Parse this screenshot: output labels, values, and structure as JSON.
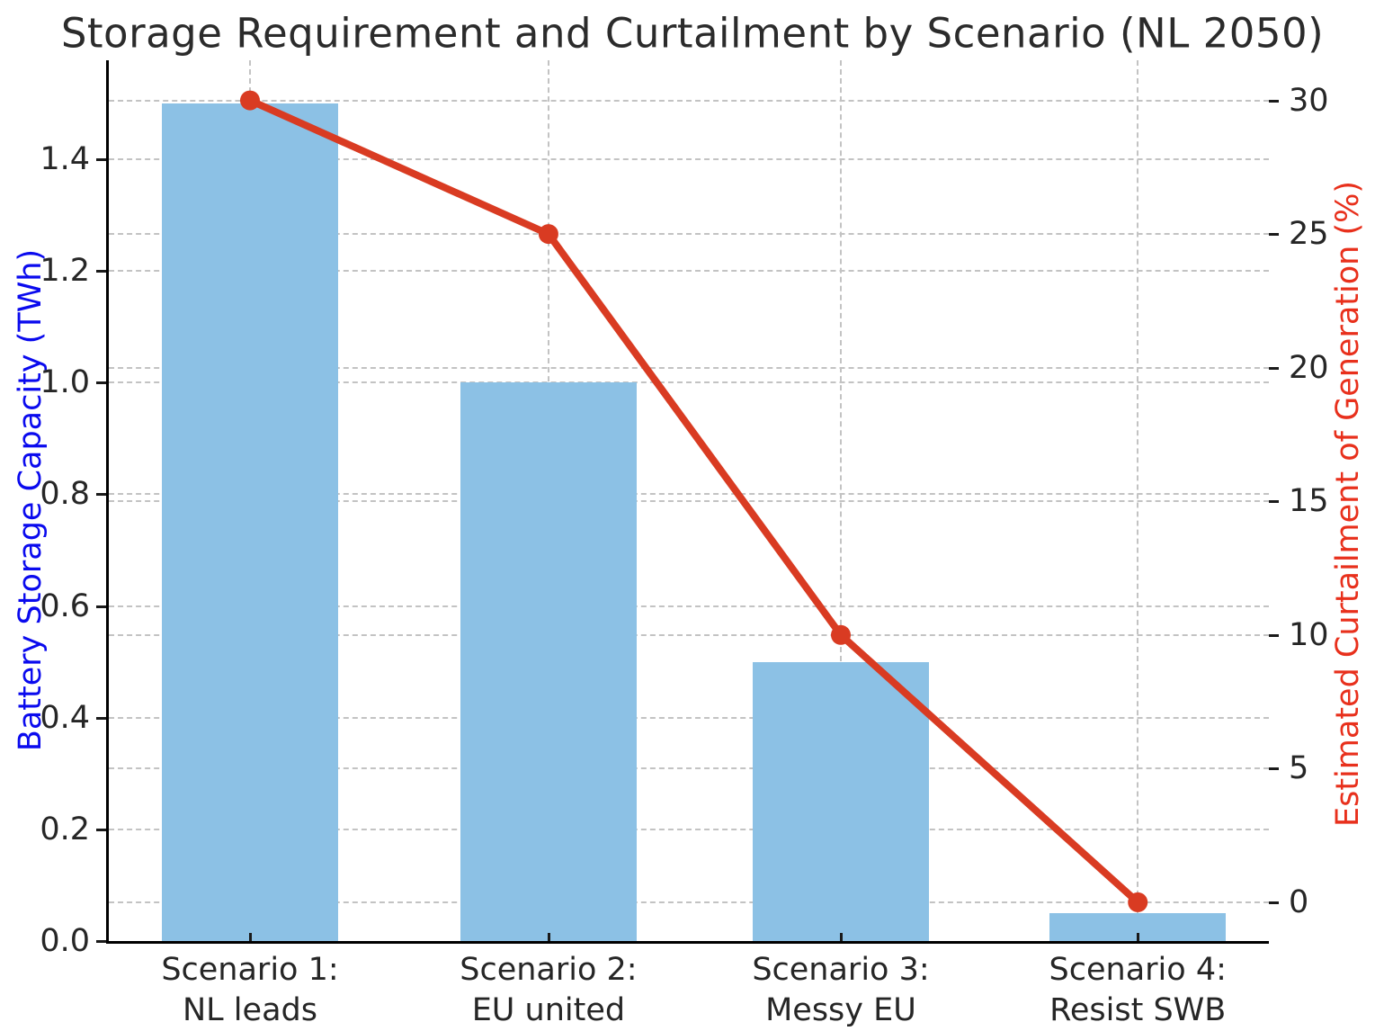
{
  "chart_data": {
    "type": "combo",
    "title": "Storage Requirement and Curtailment by Scenario (NL 2050)",
    "categories": [
      "Scenario 1:\nNL leads",
      "Scenario 2:\nEU united",
      "Scenario 3:\nMessy EU",
      "Scenario 4:\nResist SWB"
    ],
    "series": [
      {
        "name": "Battery Storage Capacity (TWh)",
        "type": "bar",
        "axis": "left",
        "color": "#8cc1e5",
        "values": [
          1.5,
          1.0,
          0.5,
          0.05
        ]
      },
      {
        "name": "Estimated Curtailment of Generation (%)",
        "type": "line",
        "axis": "right",
        "color": "#d93b22",
        "marker": "circle",
        "values": [
          30,
          25,
          10,
          0
        ]
      }
    ],
    "left_axis": {
      "label": "Battery Storage Capacity (TWh)",
      "label_color": "#0a0aee",
      "range": [
        0,
        1.577
      ],
      "ticks": [
        {
          "value": 0.0,
          "label": "0.0"
        },
        {
          "value": 0.2,
          "label": "0.2"
        },
        {
          "value": 0.4,
          "label": "0.4"
        },
        {
          "value": 0.6,
          "label": "0.6"
        },
        {
          "value": 0.8,
          "label": "0.8"
        },
        {
          "value": 1.0,
          "label": "1.0"
        },
        {
          "value": 1.2,
          "label": "1.2"
        },
        {
          "value": 1.4,
          "label": "1.4"
        }
      ]
    },
    "right_axis": {
      "label": "Estimated Curtailment of Generation (%)",
      "label_color": "#e8301c",
      "range": [
        -1.45,
        31.5
      ],
      "ticks": [
        {
          "value": 0,
          "label": "0"
        },
        {
          "value": 5,
          "label": "5"
        },
        {
          "value": 10,
          "label": "10"
        },
        {
          "value": 15,
          "label": "15"
        },
        {
          "value": 20,
          "label": "20"
        },
        {
          "value": 25,
          "label": "25"
        },
        {
          "value": 30,
          "label": "30"
        }
      ]
    },
    "grid": {
      "horizontal": "dashed",
      "vertical": "dashed",
      "color": "#c3c3c3"
    },
    "legend": "none"
  }
}
